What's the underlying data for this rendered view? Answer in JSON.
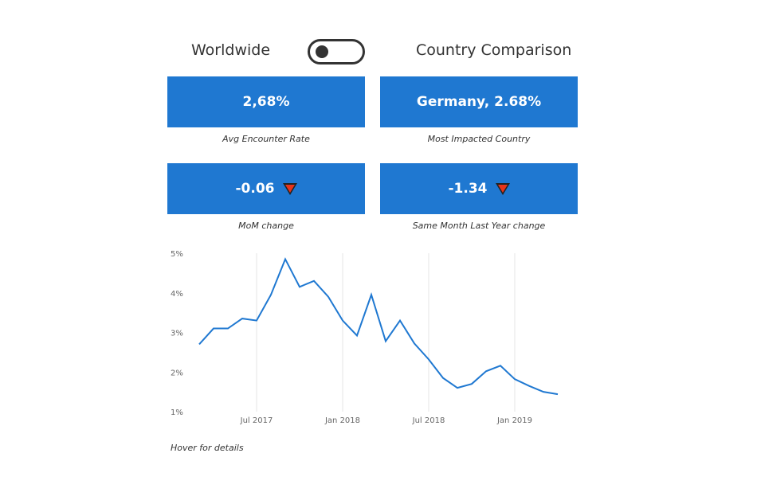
{
  "header": {
    "left_label": "Worldwide",
    "right_label": "Country Comparison"
  },
  "cards": [
    {
      "value": "2,68%",
      "caption": "Avg Encounter Rate"
    },
    {
      "value": "Germany, 2.68%",
      "caption": "Most Impacted Country"
    },
    {
      "value": "-0.06",
      "caption": "MoM change",
      "indicator": "down-triangle-icon"
    },
    {
      "value": "-1.34",
      "caption": "Same Month Last Year change",
      "indicator": "down-triangle-icon"
    }
  ],
  "colors": {
    "card": "#1f78d1",
    "line": "#1f78d1",
    "down_indicator": "#e8341a"
  },
  "footer": {
    "hint": "Hover for details"
  },
  "chart_data": {
    "type": "line",
    "x": [
      "2017-03",
      "2017-04",
      "2017-05",
      "2017-06",
      "2017-07",
      "2017-08",
      "2017-09",
      "2017-10",
      "2017-11",
      "2017-12",
      "2018-01",
      "2018-02",
      "2018-03",
      "2018-04",
      "2018-05",
      "2018-06",
      "2018-07",
      "2018-08",
      "2018-09",
      "2018-10",
      "2018-11",
      "2018-12",
      "2019-01",
      "2019-02",
      "2019-03",
      "2019-04"
    ],
    "values": [
      2.7,
      3.1,
      3.1,
      3.35,
      3.3,
      3.95,
      4.85,
      4.15,
      4.3,
      3.9,
      3.3,
      2.92,
      3.95,
      2.78,
      3.3,
      2.72,
      2.32,
      1.85,
      1.6,
      1.7,
      2.02,
      2.16,
      1.82,
      1.65,
      1.5,
      1.44
    ],
    "yticks": [
      "5%",
      "4%",
      "3%",
      "2%",
      "1%"
    ],
    "ytick_values": [
      5,
      4,
      3,
      2,
      1
    ],
    "ylim": [
      1,
      5
    ],
    "xticks": [
      {
        "label": "Jul 2017",
        "x": "2017-07"
      },
      {
        "label": "Jan 2018",
        "x": "2018-01"
      },
      {
        "label": "Jul 2018",
        "x": "2018-07"
      },
      {
        "label": "Jan 2019",
        "x": "2019-01"
      }
    ],
    "vertical_grid": true,
    "legend": "none"
  }
}
